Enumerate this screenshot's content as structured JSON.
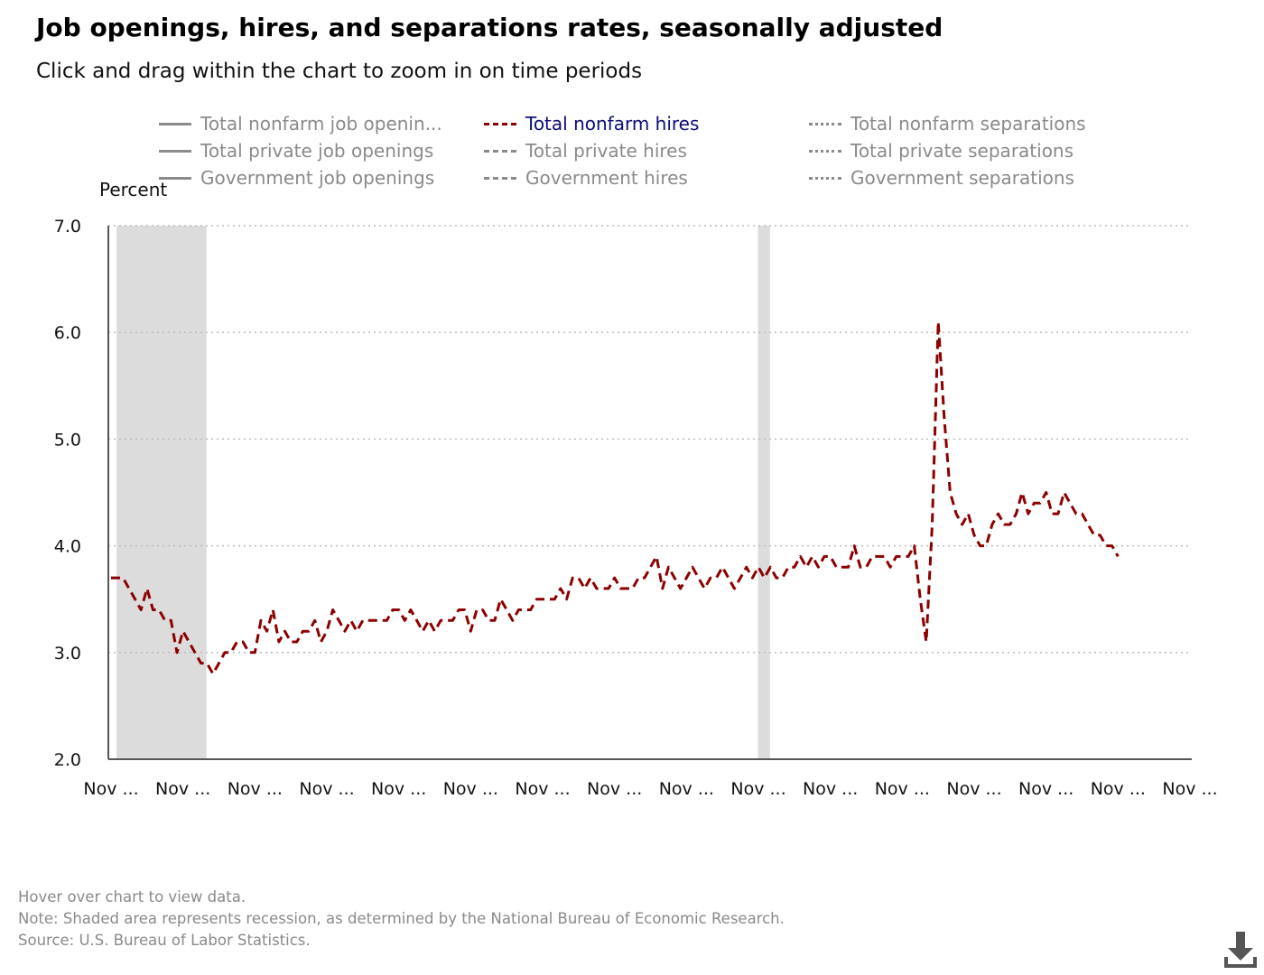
{
  "title": "Job openings, hires, and separations rates, seasonally adjusted",
  "subtitle": "Click and drag within the chart to zoom in on time periods",
  "legend": [
    {
      "label": "Total nonfarm job openin...",
      "style": "solid",
      "active": false
    },
    {
      "label": "Total nonfarm hires",
      "style": "dash",
      "active": true
    },
    {
      "label": "Total nonfarm separations",
      "style": "dot",
      "active": false
    },
    {
      "label": "Total private job openings",
      "style": "solid",
      "active": false
    },
    {
      "label": "Total private hires",
      "style": "dash",
      "active": false
    },
    {
      "label": "Total private separations",
      "style": "dot",
      "active": false
    },
    {
      "label": "Government job openings",
      "style": "solid",
      "active": false
    },
    {
      "label": "Government hires",
      "style": "dash",
      "active": false
    },
    {
      "label": "Government separations",
      "style": "dot",
      "active": false
    }
  ],
  "footer": {
    "hover": "Hover over chart to view data.",
    "note": "Note: Shaded area represents recession, as determined by the National Bureau of Economic Research.",
    "source": "Source: U.S. Bureau of Labor Statistics."
  },
  "icons": {
    "download": "download-icon"
  },
  "chart_data": {
    "type": "line",
    "ylabel": "Percent",
    "xlabel": "",
    "ylim": [
      2.0,
      7.0
    ],
    "yticks": [
      "2.0",
      "3.0",
      "4.0",
      "5.0",
      "6.0",
      "7.0"
    ],
    "xticks": [
      "Nov ...",
      "Nov ...",
      "Nov ...",
      "Nov ...",
      "Nov ...",
      "Nov ...",
      "Nov ...",
      "Nov ...",
      "Nov ...",
      "Nov ...",
      "Nov ...",
      "Nov ...",
      "Nov ...",
      "Nov ...",
      "Nov ...",
      "Nov ..."
    ],
    "grid": true,
    "legend_position": "top",
    "colors": {
      "line": "#8b0000",
      "recession": "#dcdcdc",
      "grid": "#bbbbbb",
      "axis": "#555555"
    },
    "x_unit": "months since first observation (Nov ticks every 12 months)",
    "recessions": [
      [
        1,
        16
      ],
      [
        108,
        110
      ]
    ],
    "series": [
      {
        "name": "Total nonfarm hires",
        "style": "dashed",
        "values": [
          3.7,
          3.7,
          3.7,
          3.6,
          3.5,
          3.4,
          3.6,
          3.4,
          3.4,
          3.3,
          3.3,
          3.0,
          3.2,
          3.1,
          3.0,
          2.9,
          2.9,
          2.8,
          2.9,
          3.0,
          3.0,
          3.1,
          3.1,
          3.0,
          3.0,
          3.3,
          3.2,
          3.4,
          3.1,
          3.2,
          3.1,
          3.1,
          3.2,
          3.2,
          3.3,
          3.1,
          3.2,
          3.4,
          3.3,
          3.2,
          3.3,
          3.2,
          3.3,
          3.3,
          3.3,
          3.3,
          3.3,
          3.4,
          3.4,
          3.3,
          3.4,
          3.3,
          3.2,
          3.3,
          3.2,
          3.3,
          3.3,
          3.3,
          3.4,
          3.4,
          3.2,
          3.4,
          3.4,
          3.3,
          3.3,
          3.5,
          3.4,
          3.3,
          3.4,
          3.4,
          3.4,
          3.5,
          3.5,
          3.5,
          3.5,
          3.6,
          3.5,
          3.7,
          3.7,
          3.6,
          3.7,
          3.6,
          3.6,
          3.6,
          3.7,
          3.6,
          3.6,
          3.6,
          3.7,
          3.7,
          3.8,
          3.9,
          3.6,
          3.8,
          3.7,
          3.6,
          3.7,
          3.8,
          3.7,
          3.6,
          3.7,
          3.7,
          3.8,
          3.7,
          3.6,
          3.7,
          3.8,
          3.7,
          3.8,
          3.7,
          3.8,
          3.7,
          3.7,
          3.8,
          3.8,
          3.9,
          3.8,
          3.9,
          3.8,
          3.9,
          3.9,
          3.8,
          3.8,
          3.8,
          4.0,
          3.8,
          3.8,
          3.9,
          3.9,
          3.9,
          3.8,
          3.9,
          3.9,
          3.9,
          4.0,
          3.5,
          3.1,
          4.2,
          6.1,
          5.2,
          4.5,
          4.3,
          4.2,
          4.3,
          4.1,
          4.0,
          4.0,
          4.2,
          4.3,
          4.2,
          4.2,
          4.3,
          4.5,
          4.3,
          4.4,
          4.4,
          4.5,
          4.3,
          4.3,
          4.5,
          4.4,
          4.3,
          4.3,
          4.2,
          4.1,
          4.1,
          4.0,
          4.0,
          3.9
        ]
      }
    ]
  }
}
